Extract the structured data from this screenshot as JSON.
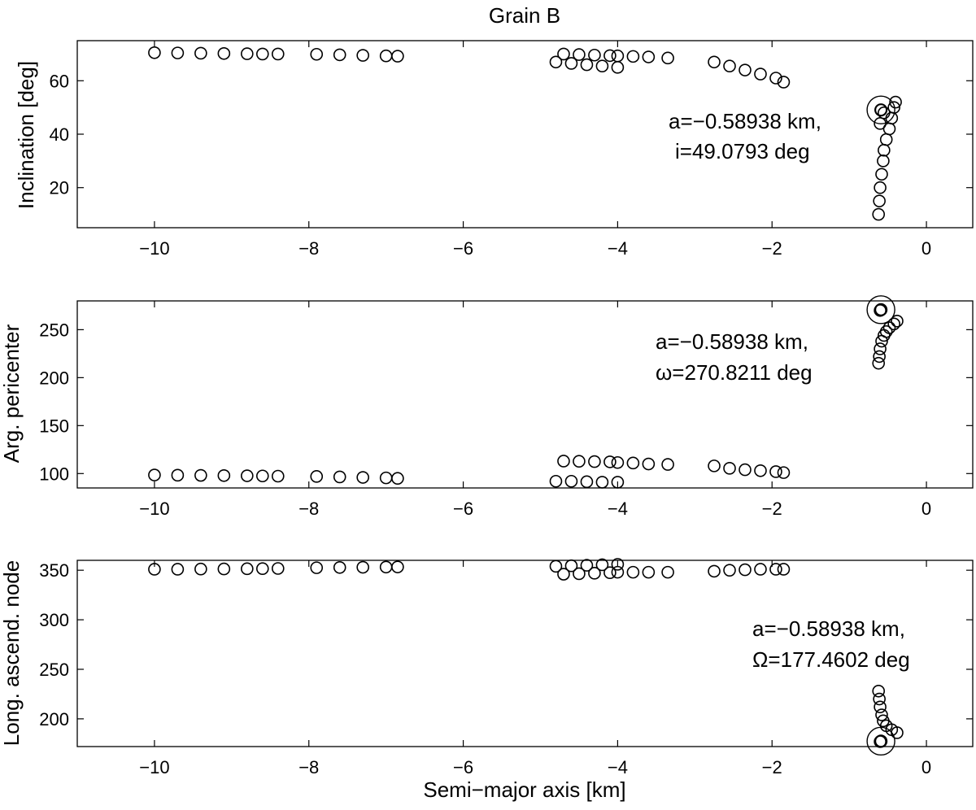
{
  "title": "Grain B",
  "xlabel": "Semi−major axis [km]",
  "chart_data": [
    {
      "type": "scatter",
      "ylabel": "Inclination [deg]",
      "xlim": [
        -11,
        0.6
      ],
      "ylim": [
        5,
        75
      ],
      "xticks": [
        -10,
        -8,
        -6,
        -4,
        -2,
        0
      ],
      "xtick_labels": [
        "−10",
        "−8",
        "−6",
        "−4",
        "−2",
        "0"
      ],
      "yticks": [
        20,
        40,
        60
      ],
      "ytick_labels": [
        "20",
        "40",
        "60"
      ],
      "annotation": [
        "a=−0.58938 km,",
        "i=49.0793 deg"
      ],
      "highlight": {
        "x": -0.58938,
        "y": 49.0793
      },
      "series": [
        {
          "x": [
            -10.0,
            -9.7,
            -9.4,
            -9.1,
            -8.8,
            -8.6,
            -8.4
          ],
          "y": [
            70.5,
            70.4,
            70.3,
            70.2,
            70.1,
            70.0,
            70.0
          ]
        },
        {
          "x": [
            -7.9,
            -7.6,
            -7.3,
            -7.0,
            -6.85
          ],
          "y": [
            69.9,
            69.7,
            69.5,
            69.3,
            69.2
          ]
        },
        {
          "x": [
            -4.8,
            -4.6,
            -4.4,
            -4.2,
            -4.0
          ],
          "y": [
            67.0,
            66.5,
            66.0,
            65.5,
            65.0
          ]
        },
        {
          "x": [
            -4.7,
            -4.5,
            -4.3,
            -4.1
          ],
          "y": [
            70.0,
            69.8,
            69.6,
            69.4
          ]
        },
        {
          "x": [
            -4.0,
            -3.8,
            -3.6,
            -3.35
          ],
          "y": [
            69.3,
            69.1,
            68.9,
            68.5
          ]
        },
        {
          "x": [
            -2.75,
            -2.55,
            -2.35,
            -2.15,
            -1.95,
            -1.85
          ],
          "y": [
            67.0,
            65.5,
            64.0,
            62.5,
            61.0,
            59.5
          ]
        },
        {
          "x": [
            -0.62,
            -0.61,
            -0.6,
            -0.58,
            -0.56,
            -0.55,
            -0.52,
            -0.48,
            -0.45,
            -0.42,
            -0.4,
            -0.6,
            -0.55
          ],
          "y": [
            10.0,
            15.0,
            20.0,
            25.0,
            30.0,
            34.0,
            38.0,
            42.0,
            46.0,
            50.0,
            52.0,
            44.0,
            48.0
          ]
        }
      ]
    },
    {
      "type": "scatter",
      "ylabel": "Arg. pericenter",
      "xlim": [
        -11,
        0.6
      ],
      "ylim": [
        85,
        280
      ],
      "xticks": [
        -10,
        -8,
        -6,
        -4,
        -2,
        0
      ],
      "xtick_labels": [
        "−10",
        "−8",
        "−6",
        "−4",
        "−2",
        "0"
      ],
      "yticks": [
        100,
        150,
        200,
        250
      ],
      "ytick_labels": [
        "100",
        "150",
        "200",
        "250"
      ],
      "annotation": [
        "a=−0.58938 km,",
        "ω=270.8211 deg"
      ],
      "highlight": {
        "x": -0.58938,
        "y": 270.8211
      },
      "series": [
        {
          "x": [
            -10.0,
            -9.7,
            -9.4,
            -9.1,
            -8.8,
            -8.6,
            -8.4
          ],
          "y": [
            98.5,
            98.3,
            98.1,
            97.9,
            97.7,
            97.5,
            97.3
          ]
        },
        {
          "x": [
            -7.9,
            -7.6,
            -7.3,
            -7.0,
            -6.85
          ],
          "y": [
            97.0,
            96.5,
            96.0,
            95.5,
            95.0
          ]
        },
        {
          "x": [
            -4.8,
            -4.6,
            -4.4,
            -4.2,
            -4.0
          ],
          "y": [
            92.0,
            92.0,
            91.5,
            91.0,
            91.0
          ]
        },
        {
          "x": [
            -4.7,
            -4.5,
            -4.3,
            -4.1
          ],
          "y": [
            113.0,
            112.8,
            112.5,
            112.2
          ]
        },
        {
          "x": [
            -4.0,
            -3.8,
            -3.6,
            -3.35
          ],
          "y": [
            111.5,
            111.0,
            110.0,
            109.5
          ]
        },
        {
          "x": [
            -2.75,
            -2.55,
            -2.35,
            -2.15,
            -1.95,
            -1.85
          ],
          "y": [
            108.0,
            105.5,
            104.0,
            103.0,
            102.0,
            101.0
          ]
        },
        {
          "x": [
            -0.62,
            -0.61,
            -0.6,
            -0.58,
            -0.55,
            -0.52,
            -0.48,
            -0.42,
            -0.38,
            -0.6
          ],
          "y": [
            215.0,
            222.0,
            230.0,
            238.0,
            244.0,
            248.0,
            252.0,
            256.0,
            259.0,
            270.0
          ]
        }
      ]
    },
    {
      "type": "scatter",
      "ylabel": "Long. ascend. node",
      "xlim": [
        -11,
        0.6
      ],
      "ylim": [
        172,
        360
      ],
      "xticks": [
        -10,
        -8,
        -6,
        -4,
        -2,
        0
      ],
      "xtick_labels": [
        "−10",
        "−8",
        "−6",
        "−4",
        "−2",
        "0"
      ],
      "yticks": [
        200,
        250,
        300,
        350
      ],
      "ytick_labels": [
        "200",
        "250",
        "300",
        "350"
      ],
      "annotation": [
        "a=−0.58938 km,",
        "Ω=177.4602 deg"
      ],
      "highlight": {
        "x": -0.58938,
        "y": 177.4602
      },
      "series": [
        {
          "x": [
            -10.0,
            -9.7,
            -9.4,
            -9.1,
            -8.8,
            -8.6,
            -8.4
          ],
          "y": [
            351.0,
            351.0,
            351.2,
            351.3,
            351.5,
            351.6,
            351.8
          ]
        },
        {
          "x": [
            -7.9,
            -7.6,
            -7.3,
            -7.0,
            -6.85
          ],
          "y": [
            352.5,
            352.8,
            353.0,
            353.2,
            353.3
          ]
        },
        {
          "x": [
            -4.8,
            -4.6,
            -4.4,
            -4.2,
            -4.0
          ],
          "y": [
            354.0,
            354.5,
            355.0,
            355.5,
            356.0
          ]
        },
        {
          "x": [
            -4.7,
            -4.5,
            -4.3,
            -4.1
          ],
          "y": [
            346.0,
            346.5,
            347.0,
            347.5
          ]
        },
        {
          "x": [
            -4.0,
            -3.8,
            -3.6,
            -3.35
          ],
          "y": [
            348.0,
            348.0,
            348.0,
            348.0
          ]
        },
        {
          "x": [
            -2.75,
            -2.55,
            -2.35,
            -2.15,
            -1.95,
            -1.85
          ],
          "y": [
            349.0,
            350.0,
            350.5,
            351.0,
            351.0,
            351.0
          ]
        },
        {
          "x": [
            -0.62,
            -0.61,
            -0.6,
            -0.58,
            -0.56,
            -0.52,
            -0.45,
            -0.38,
            -0.6
          ],
          "y": [
            228.0,
            220.0,
            212.0,
            204.0,
            198.0,
            193.0,
            189.0,
            186.0,
            177.0
          ]
        }
      ]
    }
  ]
}
